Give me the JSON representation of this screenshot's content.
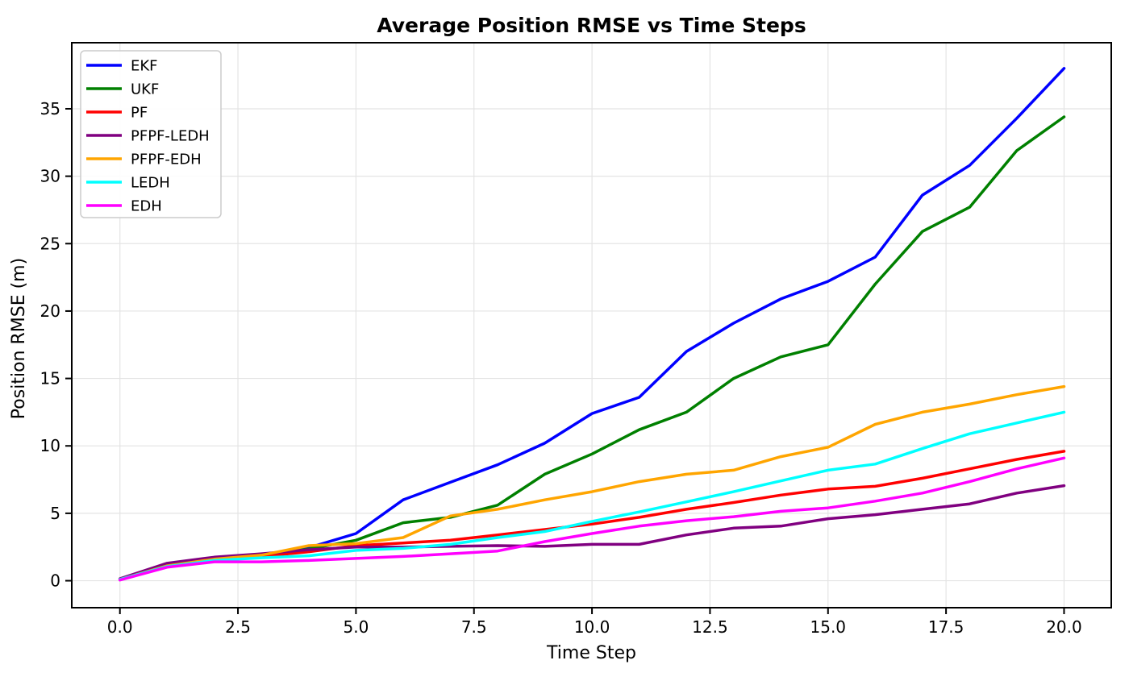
{
  "page": {
    "background": "#ffffff"
  },
  "chart_data": {
    "type": "line",
    "title": "Average Position RMSE vs Time Steps",
    "xlabel": "Time Step",
    "ylabel": "Position RMSE (m)",
    "xlim": [
      -1.02,
      21.0
    ],
    "ylim": [
      -2.0,
      39.9
    ],
    "grid": true,
    "grid_color": "#e4e4e4",
    "axis_color": "#000000",
    "legend_position": "upper left",
    "line_width": 3.5,
    "x_ticks": [
      0.0,
      2.5,
      5.0,
      7.5,
      10.0,
      12.5,
      15.0,
      17.5,
      20.0
    ],
    "x_tick_labels": [
      "0.0",
      "2.5",
      "5.0",
      "7.5",
      "10.0",
      "12.5",
      "15.0",
      "17.5",
      "20.0"
    ],
    "y_ticks": [
      0,
      5,
      10,
      15,
      20,
      25,
      30,
      35
    ],
    "y_tick_labels": [
      "0",
      "5",
      "10",
      "15",
      "20",
      "25",
      "30",
      "35"
    ],
    "x": [
      0,
      1,
      2,
      3,
      4,
      5,
      6,
      7,
      8,
      9,
      10,
      11,
      12,
      13,
      14,
      15,
      16,
      17,
      18,
      19,
      20
    ],
    "series": [
      {
        "name": "EKF",
        "color": "#0000ff",
        "values": [
          0.1,
          1.2,
          1.65,
          1.9,
          2.45,
          3.5,
          6.0,
          7.3,
          8.6,
          10.2,
          12.4,
          13.6,
          17.0,
          19.1,
          20.9,
          22.2,
          24.0,
          28.6,
          30.8,
          34.3,
          38.0
        ]
      },
      {
        "name": "UKF",
        "color": "#008000",
        "values": [
          0.1,
          1.15,
          1.6,
          1.85,
          2.35,
          3.0,
          4.3,
          4.7,
          5.6,
          7.9,
          9.4,
          11.2,
          12.5,
          15.0,
          16.6,
          17.5,
          22.0,
          25.9,
          27.7,
          31.9,
          34.4
        ]
      },
      {
        "name": "PF",
        "color": "#ff0000",
        "values": [
          0.1,
          1.1,
          1.6,
          1.8,
          2.15,
          2.6,
          2.8,
          3.0,
          3.4,
          3.8,
          4.2,
          4.7,
          5.3,
          5.8,
          6.35,
          6.8,
          7.0,
          7.6,
          8.3,
          9.0,
          9.6
        ]
      },
      {
        "name": "PFPF-LEDH",
        "color": "#800080",
        "values": [
          0.15,
          1.3,
          1.75,
          2.0,
          2.3,
          2.5,
          2.5,
          2.55,
          2.6,
          2.55,
          2.7,
          2.7,
          3.4,
          3.9,
          4.05,
          4.6,
          4.9,
          5.3,
          5.7,
          6.5,
          7.05
        ]
      },
      {
        "name": "PFPF-EDH",
        "color": "#ffa500",
        "values": [
          0.1,
          1.1,
          1.6,
          1.9,
          2.6,
          2.75,
          3.2,
          4.8,
          5.3,
          6.0,
          6.6,
          7.35,
          7.9,
          8.2,
          9.2,
          9.9,
          11.6,
          12.5,
          13.1,
          13.8,
          14.4
        ]
      },
      {
        "name": "LEDH",
        "color": "#00ffff",
        "values": [
          0.1,
          1.05,
          1.5,
          1.7,
          1.85,
          2.25,
          2.4,
          2.7,
          3.2,
          3.65,
          4.4,
          5.1,
          5.85,
          6.6,
          7.4,
          8.2,
          8.65,
          9.8,
          10.9,
          11.7,
          12.5
        ]
      },
      {
        "name": "EDH",
        "color": "#ff00ff",
        "values": [
          0.05,
          1.0,
          1.4,
          1.4,
          1.5,
          1.65,
          1.8,
          2.0,
          2.2,
          2.9,
          3.5,
          4.05,
          4.45,
          4.75,
          5.15,
          5.4,
          5.9,
          6.5,
          7.35,
          8.3,
          9.1
        ]
      }
    ]
  }
}
